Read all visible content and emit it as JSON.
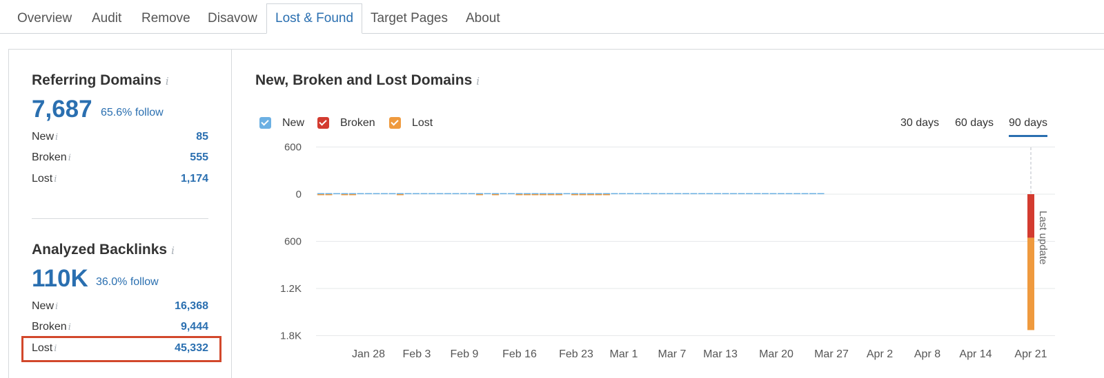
{
  "tabs": [
    {
      "label": "Overview",
      "active": false
    },
    {
      "label": "Audit",
      "active": false
    },
    {
      "label": "Remove",
      "active": false
    },
    {
      "label": "Disavow",
      "active": false
    },
    {
      "label": "Lost & Found",
      "active": true
    },
    {
      "label": "Target Pages",
      "active": false
    },
    {
      "label": "About",
      "active": false
    }
  ],
  "referring_domains": {
    "title": "Referring Domains",
    "info": "i",
    "total": "7,687",
    "follow": "65.6% follow",
    "rows": [
      {
        "label": "New",
        "value": "85"
      },
      {
        "label": "Broken",
        "value": "555"
      },
      {
        "label": "Lost",
        "value": "1,174"
      }
    ]
  },
  "analyzed_backlinks": {
    "title": "Analyzed Backlinks",
    "info": "i",
    "total": "110K",
    "follow": "36.0% follow",
    "rows": [
      {
        "label": "New",
        "value": "16,368"
      },
      {
        "label": "Broken",
        "value": "9,444"
      },
      {
        "label": "Lost",
        "value": "45,332"
      }
    ]
  },
  "chart_panel": {
    "title": "New, Broken and Lost Domains",
    "info": "i",
    "ranges": [
      {
        "label": "30 days",
        "active": false
      },
      {
        "label": "60 days",
        "active": false
      },
      {
        "label": "90 days",
        "active": true
      }
    ],
    "last_update_label": "Last update"
  },
  "chart_data": {
    "type": "bar",
    "stacked": true,
    "title": "New, Broken and Lost Domains",
    "legend": [
      {
        "name": "New",
        "color": "#6cb0e3",
        "checked": true
      },
      {
        "name": "Broken",
        "color": "#d33b30",
        "checked": true
      },
      {
        "name": "Lost",
        "color": "#ef9a3e",
        "checked": true
      }
    ],
    "legend_position": "top-left",
    "y_tick_labels": [
      "600",
      "0",
      "600",
      "1.2K",
      "1.8K"
    ],
    "y_range": [
      -1800,
      600
    ],
    "x_range_days": "Jan 21 - Apr 22",
    "x_tick_labels": [
      "Jan 28",
      "Feb 3",
      "Feb 9",
      "Feb 16",
      "Feb 23",
      "Mar 1",
      "Mar 7",
      "Mar 13",
      "Mar 20",
      "Mar 27",
      "Apr 2",
      "Apr 8",
      "Apr 14",
      "Apr 21"
    ],
    "grid": true,
    "daily_new": [
      20,
      18,
      22,
      17,
      19,
      26,
      24,
      21,
      18,
      10,
      12,
      15,
      19,
      17,
      11,
      9,
      8,
      26,
      18,
      10,
      9,
      12,
      16,
      21,
      23,
      21,
      18,
      14,
      15,
      17,
      16,
      22,
      24,
      19,
      20,
      26,
      23,
      21,
      22,
      12,
      9,
      18,
      24,
      36,
      29,
      17,
      19,
      21,
      14,
      12,
      10,
      14,
      16,
      11,
      9,
      19,
      16,
      14,
      15,
      16,
      17,
      15,
      14,
      13
    ],
    "daily_lost": [
      18,
      22,
      0,
      20,
      16,
      0,
      0,
      0,
      0,
      0,
      12,
      0,
      0,
      0,
      0,
      0,
      0,
      0,
      0,
      0,
      18,
      0,
      16,
      0,
      0,
      22,
      18,
      20,
      15,
      17,
      20,
      0,
      16,
      21,
      20,
      22,
      18,
      0,
      0,
      0,
      0,
      0,
      0,
      0,
      0,
      0,
      0,
      0,
      0,
      0,
      0,
      0,
      0,
      0,
      0,
      0,
      0,
      0,
      0,
      0,
      0,
      0,
      0,
      0
    ],
    "last_update": {
      "label": "Apr 21",
      "broken": 555,
      "lost": 1174
    }
  }
}
